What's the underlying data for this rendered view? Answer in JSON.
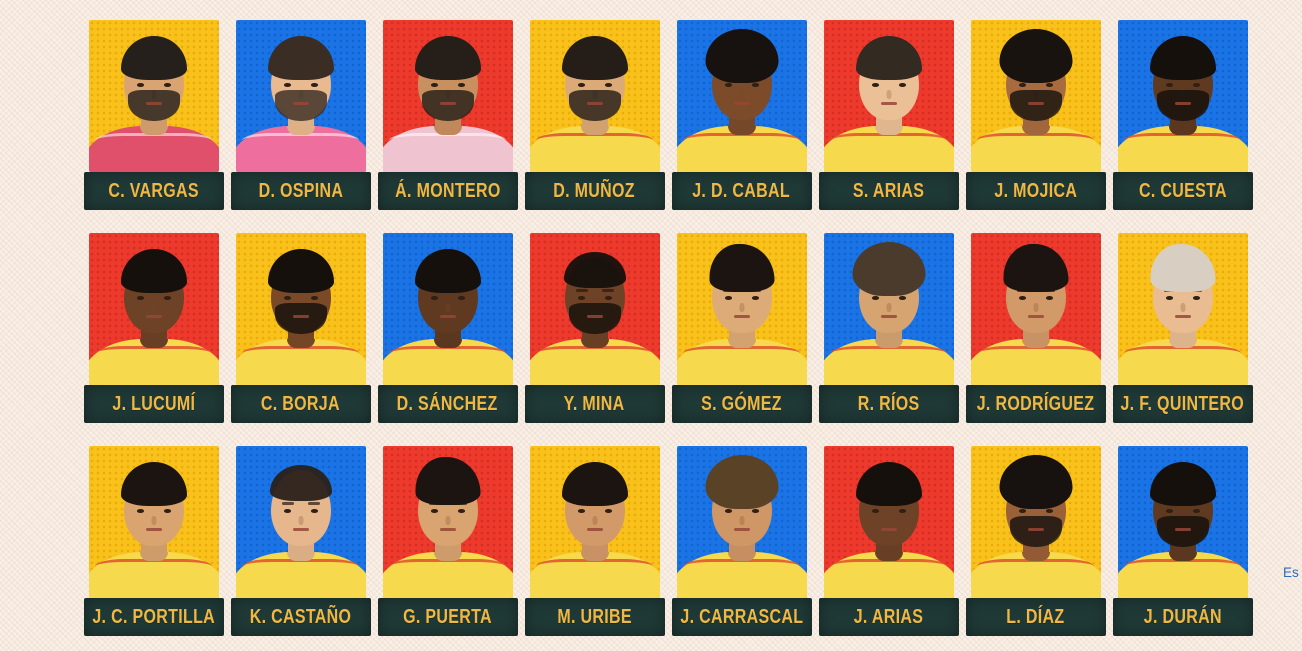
{
  "page": {
    "background": "#f8f0e7",
    "truncated_link_text": "Es"
  },
  "colors": {
    "card_yellow": "#f9c21a",
    "card_blue": "#1b74e6",
    "card_red": "#ee3a2d",
    "plate": "#1f3936",
    "name_text": "#f0b843",
    "link_blue": "#3069c0"
  },
  "players": [
    {
      "name": "C. VARGAS",
      "bg": "yellow",
      "skin": "#d9a472",
      "hair": "#26201c",
      "hair_type": "short",
      "beard": true,
      "jersey": "#e0506a"
    },
    {
      "name": "D. OSPINA",
      "bg": "blue",
      "skin": "#e9b98f",
      "hair": "#3a2e24",
      "hair_type": "short",
      "beard": true,
      "jersey": "#ee6f9e"
    },
    {
      "name": "Á. MONTERO",
      "bg": "red",
      "skin": "#c9905f",
      "hair": "#261e18",
      "hair_type": "short",
      "beard": true,
      "jersey": "#efc3cf"
    },
    {
      "name": "D. MUÑOZ",
      "bg": "yellow",
      "skin": "#dcaa76",
      "hair": "#241d18",
      "hair_type": "short",
      "beard": true,
      "jersey": "#f7d94e"
    },
    {
      "name": "J. D. CABAL",
      "bg": "blue",
      "skin": "#7c4b2a",
      "hair": "#171210",
      "hair_type": "curly",
      "beard": false,
      "jersey": "#f7d94e"
    },
    {
      "name": "S. ARIAS",
      "bg": "red",
      "skin": "#ecc096",
      "hair": "#332a22",
      "hair_type": "short",
      "beard": false,
      "jersey": "#f7d94e"
    },
    {
      "name": "J. MOJICA",
      "bg": "yellow",
      "skin": "#a86b40",
      "hair": "#19130f",
      "hair_type": "curly",
      "beard": true,
      "jersey": "#f7d94e"
    },
    {
      "name": "C. CUESTA",
      "bg": "blue",
      "skin": "#5f3a20",
      "hair": "#15100c",
      "hair_type": "short",
      "beard": true,
      "jersey": "#f7d94e"
    },
    {
      "name": "J. LUCUMÍ",
      "bg": "red",
      "skin": "#6d4226",
      "hair": "#15100c",
      "hair_type": "short",
      "beard": false,
      "jersey": "#f7d94e"
    },
    {
      "name": "C. BORJA",
      "bg": "yellow",
      "skin": "#7a4a28",
      "hair": "#15100c",
      "hair_type": "short",
      "beard": true,
      "jersey": "#f7d94e"
    },
    {
      "name": "D. SÁNCHEZ",
      "bg": "blue",
      "skin": "#5f3a20",
      "hair": "#15100c",
      "hair_type": "short",
      "beard": false,
      "jersey": "#f7d94e"
    },
    {
      "name": "Y. MINA",
      "bg": "red",
      "skin": "#6d4226",
      "hair": "#15100c",
      "hair_type": "buzz",
      "beard": true,
      "jersey": "#f7d94e"
    },
    {
      "name": "S. GÓMEZ",
      "bg": "yellow",
      "skin": "#ddab77",
      "hair": "#1c1410",
      "hair_type": "quiff",
      "beard": false,
      "jersey": "#f7d94e"
    },
    {
      "name": "R. RÍOS",
      "bg": "blue",
      "skin": "#d6a471",
      "hair": "#4a3b2c",
      "hair_type": "curly",
      "beard": false,
      "jersey": "#f7d94e"
    },
    {
      "name": "J. RODRÍGUEZ",
      "bg": "red",
      "skin": "#d39a69",
      "hair": "#1c1410",
      "hair_type": "quiff",
      "beard": false,
      "jersey": "#f7d94e"
    },
    {
      "name": "J. F. QUINTERO",
      "bg": "yellow",
      "skin": "#e9bc92",
      "hair": "#d8cfc2",
      "hair_type": "quiff",
      "beard": false,
      "jersey": "#f7d94e"
    },
    {
      "name": "J. C. PORTILLA",
      "bg": "yellow",
      "skin": "#d9a470",
      "hair": "#1c1410",
      "hair_type": "short",
      "beard": false,
      "jersey": "#f7d94e"
    },
    {
      "name": "K. CASTAÑO",
      "bg": "blue",
      "skin": "#e6b68c",
      "hair": "#2a211a",
      "hair_type": "buzz",
      "beard": false,
      "jersey": "#f7d94e"
    },
    {
      "name": "G. PUERTA",
      "bg": "red",
      "skin": "#d9a470",
      "hair": "#1c1410",
      "hair_type": "quiff",
      "beard": false,
      "jersey": "#f7d94e"
    },
    {
      "name": "M. URIBE",
      "bg": "yellow",
      "skin": "#d39a69",
      "hair": "#1c1410",
      "hair_type": "short",
      "beard": false,
      "jersey": "#f7d94e"
    },
    {
      "name": "J. CARRASCAL",
      "bg": "blue",
      "skin": "#cf9766",
      "hair": "#5a4226",
      "hair_type": "curly",
      "beard": false,
      "jersey": "#f7d94e"
    },
    {
      "name": "J. ARIAS",
      "bg": "red",
      "skin": "#6d4226",
      "hair": "#15100c",
      "hair_type": "short",
      "beard": false,
      "jersey": "#f7d94e"
    },
    {
      "name": "L. DÍAZ",
      "bg": "yellow",
      "skin": "#9a6038",
      "hair": "#171210",
      "hair_type": "curly",
      "beard": true,
      "jersey": "#f7d94e"
    },
    {
      "name": "J. DURÁN",
      "bg": "blue",
      "skin": "#5f3a20",
      "hair": "#15100c",
      "hair_type": "short",
      "beard": true,
      "jersey": "#f7d94e"
    }
  ]
}
